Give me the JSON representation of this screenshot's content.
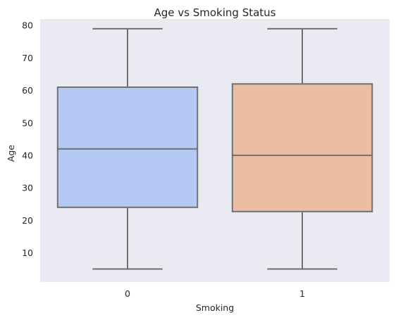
{
  "chart_data": {
    "type": "box",
    "title": "Age vs Smoking Status",
    "xlabel": "Smoking",
    "ylabel": "Age",
    "categories": [
      "0",
      "1"
    ],
    "ylim": [
      1,
      82
    ],
    "yticks": [
      10,
      20,
      30,
      40,
      50,
      60,
      70,
      80
    ],
    "grid": false,
    "boxes": [
      {
        "category": "0",
        "whisker_low": 5,
        "q1": 24,
        "median": 42,
        "q3": 61,
        "whisker_high": 79,
        "color": "#b4c9f4"
      },
      {
        "category": "1",
        "whisker_low": 5,
        "q1": 22.7,
        "median": 40,
        "q3": 62,
        "whisker_high": 79,
        "color": "#edbca5"
      }
    ],
    "colors": {
      "plot_background": "#eaeaf2",
      "line": "#707070"
    }
  }
}
